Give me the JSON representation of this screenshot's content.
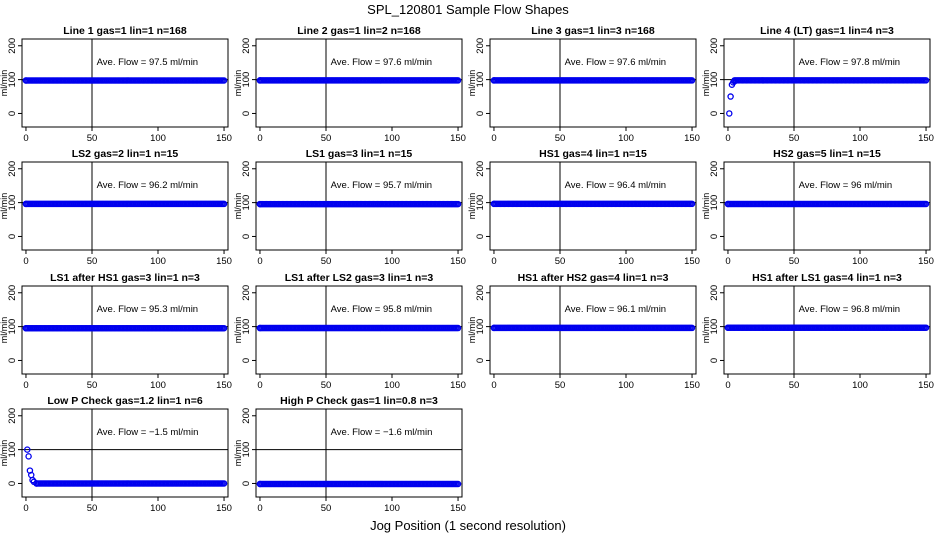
{
  "title": "SPL_120801  Sample Flow Shapes",
  "xcaption": "Jog Position (1 second resolution)",
  "ylabel": "ml/min",
  "xticks": [
    0,
    50,
    100,
    150
  ],
  "yticks": [
    0,
    100,
    200
  ],
  "flow_prefix": "Ave. Flow = ",
  "flow_unit": "  ml/min",
  "colors": {
    "points": "#0000ee",
    "axis": "#000000"
  },
  "chart_data": [
    {
      "type": "scatter",
      "title": "Line 1 gas=1 lin=1 n=168",
      "ave_flow": "97.5",
      "x": [
        0,
        150
      ],
      "y": [
        97.5,
        97.5
      ],
      "xlim": [
        -3,
        153
      ],
      "ylim": [
        -40,
        220
      ]
    },
    {
      "type": "scatter",
      "title": "Line 2 gas=1 lin=2 n=168",
      "ave_flow": "97.6",
      "x": [
        0,
        150
      ],
      "y": [
        97.6,
        97.6
      ],
      "xlim": [
        -3,
        153
      ],
      "ylim": [
        -40,
        220
      ]
    },
    {
      "type": "scatter",
      "title": "Line 3 gas=1 lin=3 n=168",
      "ave_flow": "97.6",
      "x": [
        0,
        150
      ],
      "y": [
        97.6,
        97.6
      ],
      "xlim": [
        -3,
        153
      ],
      "ylim": [
        -40,
        220
      ]
    },
    {
      "type": "scatter",
      "title": "Line 4 (LT) gas=1 lin=4 n=3",
      "ave_flow": "97.8",
      "x": [
        1,
        2,
        3,
        4,
        5,
        150
      ],
      "y": [
        0,
        50,
        85,
        92,
        95,
        97.8
      ],
      "xlim": [
        -3,
        153
      ],
      "ylim": [
        -40,
        220
      ]
    },
    {
      "type": "scatter",
      "title": "LS2 gas=2 lin=1 n=15",
      "ave_flow": "96.2",
      "x": [
        0,
        150
      ],
      "y": [
        96.2,
        96.2
      ],
      "xlim": [
        -3,
        153
      ],
      "ylim": [
        -40,
        220
      ]
    },
    {
      "type": "scatter",
      "title": "LS1 gas=3 lin=1 n=15",
      "ave_flow": "95.7",
      "x": [
        0,
        150
      ],
      "y": [
        95.7,
        95.7
      ],
      "xlim": [
        -3,
        153
      ],
      "ylim": [
        -40,
        220
      ]
    },
    {
      "type": "scatter",
      "title": "HS1 gas=4 lin=1 n=15",
      "ave_flow": "96.4",
      "x": [
        0,
        150
      ],
      "y": [
        96.4,
        96.4
      ],
      "xlim": [
        -3,
        153
      ],
      "ylim": [
        -40,
        220
      ]
    },
    {
      "type": "scatter",
      "title": "HS2 gas=5 lin=1 n=15",
      "ave_flow": "96",
      "x": [
        0,
        150
      ],
      "y": [
        96,
        96
      ],
      "xlim": [
        -3,
        153
      ],
      "ylim": [
        -40,
        220
      ]
    },
    {
      "type": "scatter",
      "title": "LS1 after HS1 gas=3 lin=1 n=3",
      "ave_flow": "95.3",
      "x": [
        0,
        150
      ],
      "y": [
        95.3,
        95.3
      ],
      "xlim": [
        -3,
        153
      ],
      "ylim": [
        -40,
        220
      ]
    },
    {
      "type": "scatter",
      "title": "LS1 after LS2 gas=3 lin=1 n=3",
      "ave_flow": "95.8",
      "x": [
        0,
        150
      ],
      "y": [
        95.8,
        95.8
      ],
      "xlim": [
        -3,
        153
      ],
      "ylim": [
        -40,
        220
      ]
    },
    {
      "type": "scatter",
      "title": "HS1 after HS2 gas=4 lin=1 n=3",
      "ave_flow": "96.1",
      "x": [
        0,
        150
      ],
      "y": [
        96.1,
        96.1
      ],
      "xlim": [
        -3,
        153
      ],
      "ylim": [
        -40,
        220
      ]
    },
    {
      "type": "scatter",
      "title": "HS1 after LS1 gas=4 lin=1 n=3",
      "ave_flow": "96.8",
      "x": [
        0,
        150
      ],
      "y": [
        96.8,
        96.8
      ],
      "xlim": [
        -3,
        153
      ],
      "ylim": [
        -40,
        220
      ]
    },
    {
      "type": "scatter",
      "title": "Low P Check gas=1.2 lin=1 n=6",
      "ave_flow": "−1.5",
      "x": [
        1,
        2,
        3,
        4,
        5,
        6,
        8,
        150
      ],
      "y": [
        100,
        80,
        38,
        25,
        10,
        5,
        0,
        0
      ],
      "xlim": [
        -3,
        153
      ],
      "ylim": [
        -40,
        220
      ]
    },
    {
      "type": "scatter",
      "title": "High P Check gas=1 lin=0.8 n=3",
      "ave_flow": "−1.6",
      "x": [
        0,
        150
      ],
      "y": [
        -1.6,
        -1.6
      ],
      "xlim": [
        -3,
        153
      ],
      "ylim": [
        -40,
        220
      ]
    }
  ]
}
